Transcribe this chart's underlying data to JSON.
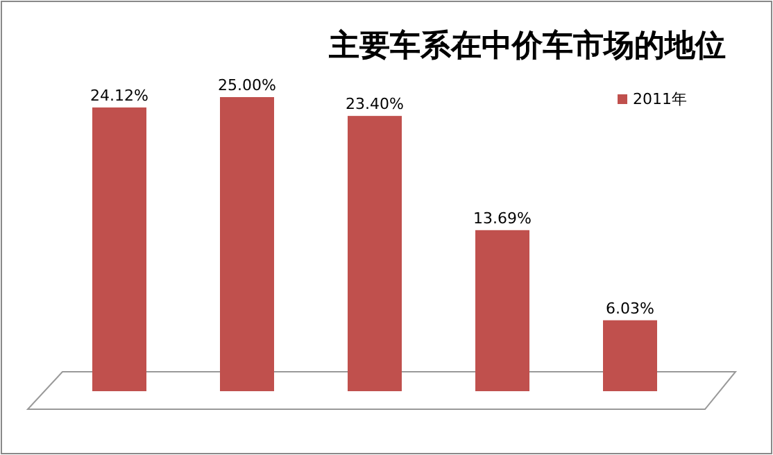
{
  "chart_data": {
    "type": "bar",
    "title": "主要车系在中价车市场的地位",
    "categories": [
      null,
      null,
      null,
      null,
      null
    ],
    "series": [
      {
        "name": "2011年",
        "color": "#c0504d",
        "values": [
          24.12,
          25.0,
          23.4,
          13.69,
          6.03
        ],
        "value_labels": [
          "24.12%",
          "25.00%",
          "23.40%",
          "13.69%",
          "6.03%"
        ]
      }
    ],
    "legend": "top right"
  }
}
